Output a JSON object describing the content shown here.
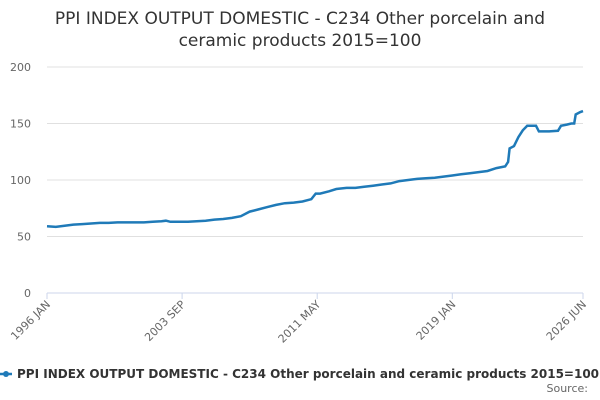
{
  "chart_data": {
    "type": "line",
    "title": [
      "PPI INDEX OUTPUT DOMESTIC - C234 Other porcelain and",
      "ceramic products 2015=100"
    ],
    "x": [
      "1996 JAN",
      "1996 JUL",
      "1997 JAN",
      "1997 JUL",
      "1998 JAN",
      "1998 JUL",
      "1999 JAN",
      "1999 JUL",
      "2000 JAN",
      "2000 JUL",
      "2001 JAN",
      "2001 JUL",
      "2002 JAN",
      "2002 JUL",
      "2002 OCT",
      "2003 JAN",
      "2003 JUL",
      "2004 JAN",
      "2004 JUL",
      "2005 JAN",
      "2005 JUL",
      "2006 JAN",
      "2006 JUL",
      "2007 JAN",
      "2007 JUL",
      "2008 JAN",
      "2008 JUL",
      "2009 JAN",
      "2009 JUL",
      "2010 JAN",
      "2010 JUL",
      "2011 JAN",
      "2011 APR",
      "2011 JUL",
      "2012 JAN",
      "2012 JUN",
      "2013 JAN",
      "2013 JUL",
      "2014 JAN",
      "2014 JUL",
      "2015 JAN",
      "2015 JUL",
      "2016 JAN",
      "2016 JUL",
      "2017 JAN",
      "2017 JUL",
      "2018 JAN",
      "2018 JUL",
      "2019 JAN",
      "2019 JUL",
      "2020 JAN",
      "2020 JUL",
      "2021 JAN",
      "2021 JUL",
      "2022 JAN",
      "2022 MAR",
      "2022 APR",
      "2022 JUL",
      "2022 OCT",
      "2023 JAN",
      "2023 APR",
      "2023 OCT",
      "2023 DEC",
      "2024 JUL",
      "2025 JAN",
      "2025 MAR",
      "2025 JUL",
      "2025 OCT",
      "2025 DEC",
      "2026 JAN",
      "2026 APR",
      "2026 JUN"
    ],
    "series": [
      {
        "name": "PPI INDEX OUTPUT DOMESTIC - C234 Other porcelain and ceramic products 2015=100",
        "color": "#1f7ab8",
        "values": [
          59,
          58.5,
          59.5,
          60.5,
          61,
          61.5,
          62,
          62,
          62.5,
          62.5,
          62.5,
          62.5,
          63,
          63.5,
          64,
          63,
          63,
          63,
          63.5,
          64,
          65,
          65.5,
          66.5,
          68,
          72,
          74,
          76,
          78,
          79.5,
          80,
          81,
          83,
          88,
          88,
          90,
          92,
          93,
          93,
          94,
          95,
          96,
          97,
          99,
          100,
          101,
          101.5,
          102,
          103,
          104,
          105,
          106,
          107,
          108,
          110.5,
          112,
          116,
          128,
          130,
          138,
          144,
          148,
          148,
          143,
          143,
          143.5,
          148,
          149,
          150,
          150,
          158,
          160,
          161
        ]
      }
    ],
    "xticks": [
      "1996 JAN",
      "2003 SEP",
      "2011 MAY",
      "2019 JAN",
      "2026 JUN"
    ],
    "ylim": [
      0,
      200
    ],
    "yticks": [
      0,
      50,
      100,
      150,
      200
    ],
    "grid": true,
    "source": "Source:"
  }
}
